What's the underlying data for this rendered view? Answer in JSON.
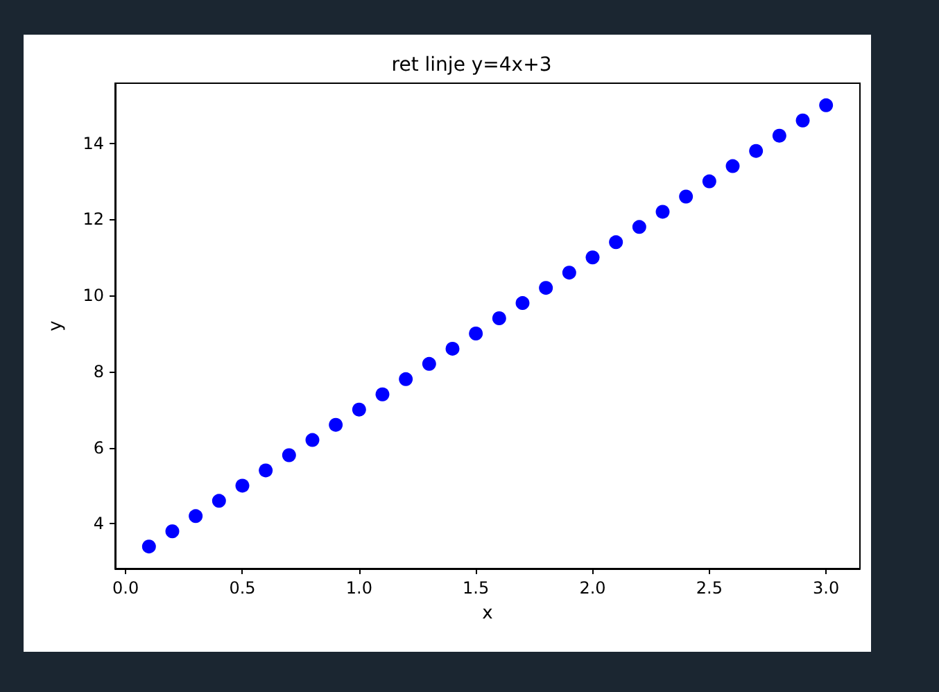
{
  "chart_data": {
    "type": "scatter",
    "title": "ret linje y=4x+3",
    "xlabel": "x",
    "ylabel": "y",
    "x": [
      0.1,
      0.2,
      0.3,
      0.4,
      0.5,
      0.6,
      0.7,
      0.8,
      0.9,
      1.0,
      1.1,
      1.2,
      1.3,
      1.4,
      1.5,
      1.6,
      1.7,
      1.8,
      1.9,
      2.0,
      2.1,
      2.2,
      2.3,
      2.4,
      2.5,
      2.6,
      2.7,
      2.8,
      2.9,
      3.0
    ],
    "series": [
      {
        "color": "#0000ff",
        "values": [
          3.4,
          3.8,
          4.2,
          4.6,
          5.0,
          5.4,
          5.8,
          6.2,
          6.6,
          7.0,
          7.4,
          7.8,
          8.2,
          8.6,
          9.0,
          9.4,
          9.8,
          10.2,
          10.6,
          11.0,
          11.4,
          11.8,
          12.2,
          12.6,
          13.0,
          13.4,
          13.8,
          14.2,
          14.6,
          15.0
        ]
      }
    ],
    "marker": "circle",
    "grid": false,
    "xlim": [
      -0.045,
      3.145
    ],
    "ylim": [
      2.82,
      15.58
    ],
    "xticks": [
      {
        "value": 0,
        "label": "0.0"
      },
      {
        "value": 0.5,
        "label": "0.5"
      },
      {
        "value": 1,
        "label": "1.0"
      },
      {
        "value": 1.5,
        "label": "1.5"
      },
      {
        "value": 2,
        "label": "2.0"
      },
      {
        "value": 2.5,
        "label": "2.5"
      },
      {
        "value": 3,
        "label": "3.0"
      }
    ],
    "yticks": [
      4,
      6,
      8,
      10,
      12,
      14
    ]
  }
}
